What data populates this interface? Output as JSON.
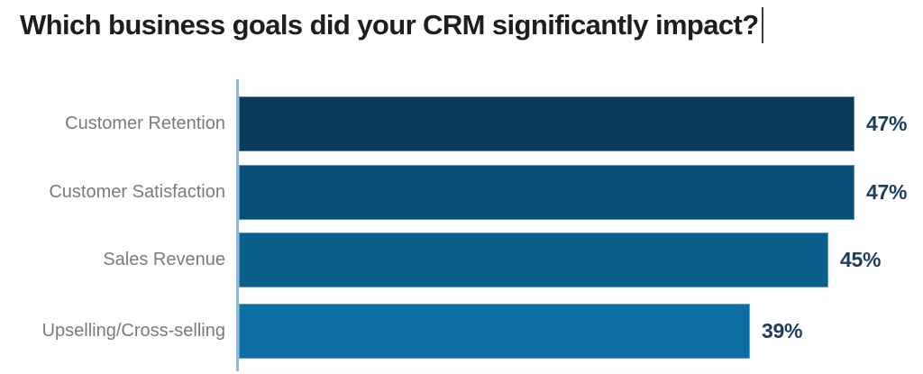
{
  "title": "Which business goals did your CRM significantly impact?",
  "chart_data": {
    "type": "bar",
    "orientation": "horizontal",
    "title": "Which business goals did your CRM significantly impact?",
    "categories": [
      "Customer Retention",
      "Customer Satisfaction",
      "Sales Revenue",
      "Upselling/Cross-selling"
    ],
    "values": [
      47,
      47,
      45,
      39
    ],
    "value_labels": [
      "47%",
      "47%",
      "45%",
      "39%"
    ],
    "xlabel": "",
    "ylabel": "",
    "xlim": [
      0,
      52
    ],
    "grid": false,
    "legend": false,
    "bar_colors": [
      "#0d3a5b",
      "#084f78",
      "#0a5e89",
      "#0d6ea4"
    ],
    "category_label_color": "#7b7b7b",
    "value_label_color": "#1e3c5f",
    "axis_line_color": "#8cb9da",
    "title_color": "#1e1e1e"
  }
}
